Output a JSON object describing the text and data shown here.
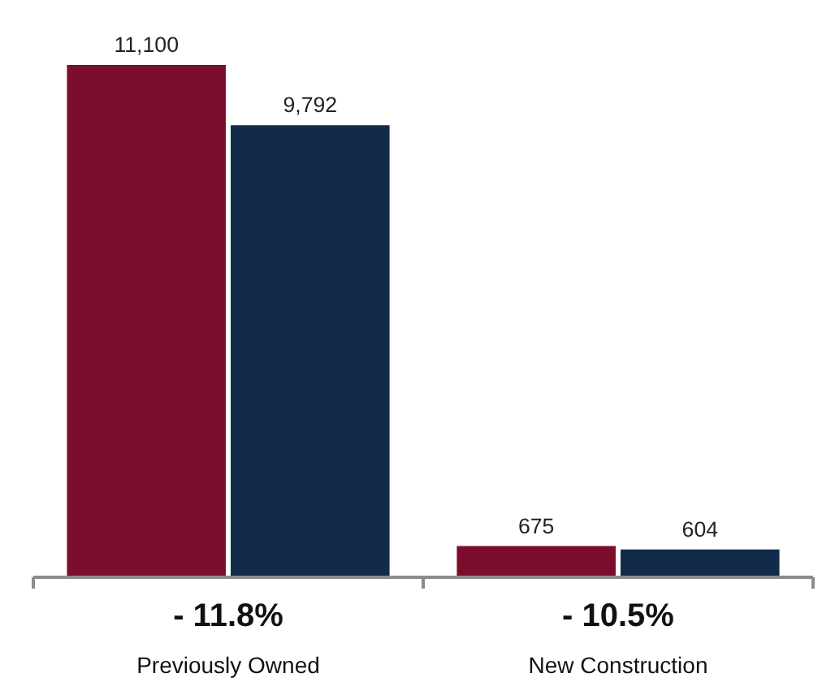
{
  "chart_data": {
    "type": "bar",
    "categories": [
      "Previously Owned",
      "New Construction"
    ],
    "series": [
      {
        "color": "#7a0e2c",
        "values": [
          11100,
          675
        ],
        "value_labels": [
          "11,100",
          "675"
        ]
      },
      {
        "color": "#122b4a",
        "values": [
          9792,
          604
        ],
        "value_labels": [
          "9,792",
          "604"
        ]
      }
    ],
    "grid": false,
    "annotations": [
      "- 11.8%",
      "- 10.5%"
    ]
  }
}
